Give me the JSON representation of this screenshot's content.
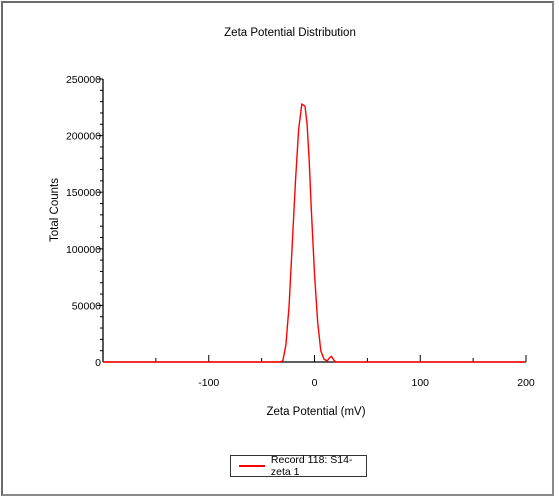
{
  "chart_data": {
    "type": "line",
    "title": "Zeta Potential Distribution",
    "xlabel": "Zeta Potential (mV)",
    "ylabel": "Total Counts",
    "xlim": [
      -200,
      200
    ],
    "ylim": [
      0,
      250000
    ],
    "x_ticks": [
      -100,
      0,
      100,
      200
    ],
    "y_ticks": [
      0,
      50000,
      100000,
      150000,
      200000,
      250000
    ],
    "grid": false,
    "legend_position": "bottom-center",
    "colors": {
      "series": "#ff0000",
      "axis": "#000000"
    },
    "series": [
      {
        "name": "Record 118: S14-zeta 1",
        "x": [
          -200,
          -150,
          -100,
          -50,
          -33,
          -30,
          -27,
          -24,
          -21,
          -18,
          -15,
          -12,
          -9,
          -7,
          -5,
          -3,
          0,
          3,
          6,
          9,
          12,
          14,
          16,
          18,
          20,
          22,
          30,
          50,
          100,
          150,
          200
        ],
        "y": [
          0,
          0,
          0,
          0,
          0,
          1000,
          15000,
          50000,
          105000,
          160000,
          205000,
          228000,
          226000,
          210000,
          178000,
          135000,
          78000,
          35000,
          10000,
          2500,
          1000,
          3500,
          5000,
          2000,
          0,
          0,
          0,
          0,
          0,
          0,
          0
        ]
      }
    ]
  }
}
